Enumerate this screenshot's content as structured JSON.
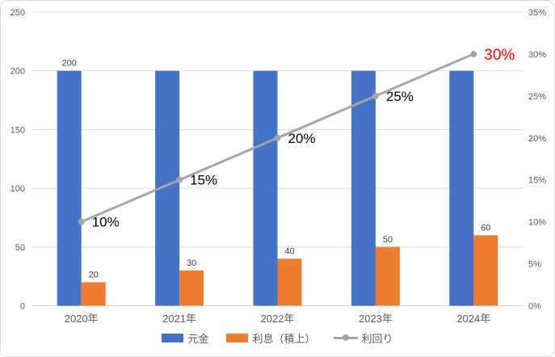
{
  "chart_data": {
    "type": "combo",
    "categories": [
      "2020年",
      "2021年",
      "2022年",
      "2023年",
      "2024年"
    ],
    "series": [
      {
        "name": "元金",
        "type": "bar",
        "color": "#4472C4",
        "values": [
          200,
          200,
          200,
          200,
          200
        ],
        "data_labels": [
          "200",
          null,
          null,
          null,
          null
        ]
      },
      {
        "name": "利息（積上）",
        "type": "bar",
        "color": "#ED7D31",
        "values": [
          20,
          30,
          40,
          50,
          60
        ],
        "data_labels": [
          "20",
          "30",
          "40",
          "50",
          "60"
        ]
      },
      {
        "name": "利回り",
        "type": "line",
        "axis": "secondary",
        "color": "#A6A6A6",
        "values": [
          10,
          15,
          20,
          25,
          30
        ],
        "data_labels": [
          "10%",
          "15%",
          "20%",
          "25%",
          "30%"
        ],
        "data_label_colors": [
          "#000000",
          "#000000",
          "#000000",
          "#000000",
          "#FF0000"
        ]
      }
    ],
    "left_axis": {
      "min": 0,
      "max": 250,
      "step": 50,
      "ticks": [
        "0",
        "50",
        "100",
        "150",
        "200",
        "250"
      ]
    },
    "right_axis": {
      "min": 0,
      "max": 35,
      "step": 5,
      "ticks": [
        "0%",
        "5%",
        "10%",
        "15%",
        "20%",
        "25%",
        "30%",
        "35%"
      ]
    },
    "grid": true,
    "legend_position": "bottom",
    "grid_color": "#D9D9D9",
    "axis_text_color": "#595959",
    "bar_label_color": "#404040",
    "highlight_label_color": "#FF0000"
  }
}
